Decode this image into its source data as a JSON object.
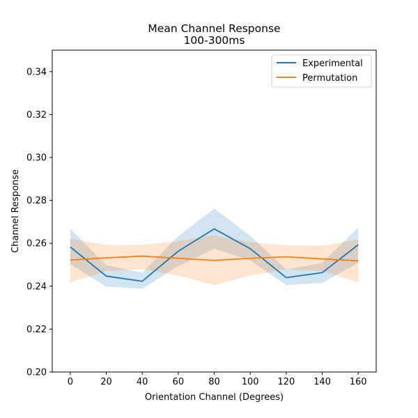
{
  "chart_data": {
    "type": "line",
    "title": "Mean Channel Response",
    "subtitle": "100-300ms",
    "xlabel": "Orientation Channel (Degrees)",
    "ylabel": "Channel Response",
    "xlim": [
      -10,
      170
    ],
    "ylim": [
      0.2,
      0.35
    ],
    "x": [
      0,
      20,
      40,
      60,
      80,
      100,
      120,
      140,
      160
    ],
    "xticks": [
      "0",
      "20",
      "40",
      "60",
      "80",
      "100",
      "120",
      "140",
      "160"
    ],
    "yticks": [
      "0.20",
      "0.22",
      "0.24",
      "0.26",
      "0.28",
      "0.30",
      "0.32",
      "0.34"
    ],
    "grid": false,
    "legend_position": "top-right",
    "series": [
      {
        "name": "Experimental",
        "color": "#1f77b4",
        "values": [
          0.2583,
          0.2447,
          0.2423,
          0.2563,
          0.2667,
          0.2575,
          0.244,
          0.2463,
          0.2593
        ],
        "lower": [
          0.2503,
          0.2398,
          0.2388,
          0.2493,
          0.2575,
          0.252,
          0.2405,
          0.2415,
          0.2508
        ],
        "upper": [
          0.2668,
          0.2498,
          0.2463,
          0.2633,
          0.2762,
          0.2635,
          0.2478,
          0.2508,
          0.2673
        ]
      },
      {
        "name": "Permutation",
        "color": "#ff7f0e",
        "values": [
          0.2522,
          0.2532,
          0.254,
          0.253,
          0.252,
          0.253,
          0.2537,
          0.2527,
          0.2518
        ],
        "lower": [
          0.2418,
          0.247,
          0.248,
          0.245,
          0.2405,
          0.245,
          0.2478,
          0.247,
          0.2418
        ],
        "upper": [
          0.2622,
          0.2592,
          0.2593,
          0.261,
          0.2637,
          0.2605,
          0.259,
          0.2588,
          0.2618
        ]
      }
    ]
  }
}
